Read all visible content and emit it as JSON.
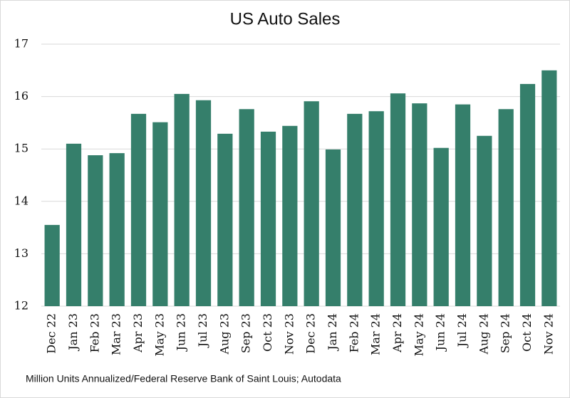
{
  "chart_data": {
    "type": "bar",
    "title": "US Auto Sales",
    "categories": [
      "Dec 22",
      "Jan 23",
      "Feb 23",
      "Mar 23",
      "Apr 23",
      "May 23",
      "Jun 23",
      "Jul 23",
      "Aug 23",
      "Sep 23",
      "Oct 23",
      "Nov 23",
      "Dec 23",
      "Jan 24",
      "Feb 24",
      "Mar 24",
      "Apr 24",
      "May 24",
      "Jun 24",
      "Jul 24",
      "Aug 24",
      "Sep 24",
      "Oct 24",
      "Nov 24"
    ],
    "values": [
      13.55,
      15.1,
      14.88,
      14.92,
      15.67,
      15.51,
      16.05,
      15.93,
      15.29,
      15.76,
      15.33,
      15.44,
      15.91,
      14.99,
      15.67,
      15.72,
      16.06,
      15.87,
      15.02,
      15.85,
      15.25,
      15.76,
      16.24,
      16.5
    ],
    "color": "#357f6b",
    "ylim": [
      12,
      17
    ],
    "yticks": [
      12,
      13,
      14,
      15,
      16,
      17
    ],
    "grid": true,
    "note": "Million Units Annualized/Federal Reserve Bank of Saint Louis; Autodata"
  }
}
